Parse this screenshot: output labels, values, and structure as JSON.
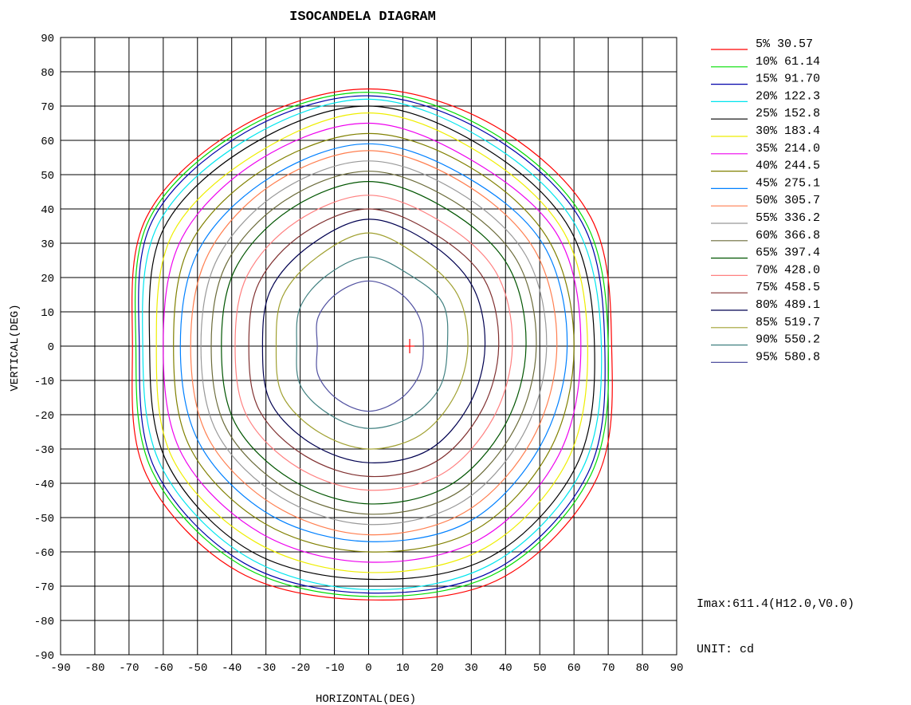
{
  "chart_data": {
    "type": "line",
    "title": "ISOCANDELA DIAGRAM",
    "xlabel": "HORIZONTAL(DEG)",
    "ylabel": "VERTICAL(DEG)",
    "xlim": [
      -90,
      90
    ],
    "ylim": [
      -90,
      90
    ],
    "xticks": [
      "-90",
      "-80",
      "-70",
      "-60",
      "-50",
      "-40",
      "-30",
      "-20",
      "-10",
      "0",
      "10",
      "20",
      "30",
      "40",
      "50",
      "60",
      "70",
      "80",
      "90"
    ],
    "yticks": [
      "90",
      "80",
      "70",
      "60",
      "50",
      "40",
      "30",
      "20",
      "10",
      "0",
      "-10",
      "-20",
      "-30",
      "-40",
      "-50",
      "-60",
      "-70",
      "-80",
      "-90"
    ],
    "grid": true,
    "legend_position": "right",
    "unit_text": "UNIT: cd",
    "imax_text": "Imax:611.4(H12.0,V0.0)",
    "max_point": {
      "x": 12,
      "y": 0,
      "color": "#ff0000"
    },
    "angles": [
      0,
      30,
      60,
      90,
      120,
      150,
      180,
      210,
      240,
      270,
      300,
      330
    ],
    "center": [
      0,
      0
    ],
    "series": [
      {
        "label": "5% 30.57",
        "color": "#ff0000",
        "radii": [
          71,
          75,
          74,
          75,
          74,
          75,
          69,
          75,
          76,
          74,
          78,
          77
        ]
      },
      {
        "label": "10% 61.14",
        "color": "#00dd00",
        "radii": [
          70,
          73,
          72,
          74,
          73,
          74,
          68,
          73,
          74,
          73,
          76,
          75
        ]
      },
      {
        "label": "15% 91.70",
        "color": "#0000aa",
        "radii": [
          69,
          72,
          71,
          73,
          72,
          73,
          67,
          72,
          73,
          72,
          75,
          74
        ]
      },
      {
        "label": "20% 122.3",
        "color": "#00e5ee",
        "radii": [
          68,
          70,
          69,
          72,
          70,
          71,
          66,
          70,
          71,
          71,
          73,
          72
        ]
      },
      {
        "label": "25% 152.8",
        "color": "#000000",
        "radii": [
          66,
          68,
          67,
          70,
          68,
          69,
          64,
          68,
          69,
          68,
          71,
          70
        ]
      },
      {
        "label": "30% 183.4",
        "color": "#eeee00",
        "radii": [
          64,
          66,
          65,
          68,
          65,
          66,
          62,
          66,
          66,
          66,
          68,
          67
        ]
      },
      {
        "label": "35% 214.0",
        "color": "#ee00ee",
        "radii": [
          62,
          64,
          62,
          65,
          63,
          63,
          60,
          63,
          63,
          63,
          65,
          64
        ]
      },
      {
        "label": "40% 244.5",
        "color": "#808000",
        "radii": [
          60,
          61,
          60,
          62,
          60,
          60,
          57,
          60,
          60,
          60,
          62,
          61
        ]
      },
      {
        "label": "45% 275.1",
        "color": "#0080ff",
        "radii": [
          58,
          59,
          57,
          59,
          57,
          57,
          55,
          57,
          57,
          57,
          59,
          58
        ]
      },
      {
        "label": "50% 305.7",
        "color": "#ff7f50",
        "radii": [
          55,
          56,
          55,
          57,
          55,
          54,
          52,
          54,
          54,
          55,
          56,
          55
        ]
      },
      {
        "label": "55% 336.2",
        "color": "#999999",
        "radii": [
          52,
          53,
          52,
          54,
          52,
          51,
          49,
          51,
          51,
          52,
          53,
          52
        ]
      },
      {
        "label": "60% 366.8",
        "color": "#6b6b3a",
        "radii": [
          49,
          50,
          49,
          51,
          49,
          48,
          46,
          48,
          48,
          49,
          50,
          49
        ]
      },
      {
        "label": "65% 397.4",
        "color": "#005500",
        "radii": [
          46,
          47,
          46,
          48,
          46,
          45,
          43,
          45,
          45,
          46,
          47,
          46
        ]
      },
      {
        "label": "70% 428.0",
        "color": "#ff8080",
        "radii": [
          42,
          43,
          42,
          44,
          42,
          41,
          39,
          41,
          41,
          42,
          43,
          42
        ]
      },
      {
        "label": "75% 458.5",
        "color": "#803030",
        "radii": [
          38,
          39,
          38,
          40,
          38,
          37,
          35,
          37,
          37,
          38,
          39,
          38
        ]
      },
      {
        "label": "80% 489.1",
        "color": "#000050",
        "radii": [
          34,
          35,
          35,
          37,
          34,
          33,
          31,
          33,
          33,
          34,
          35,
          34
        ]
      },
      {
        "label": "85% 519.7",
        "color": "#a0a030",
        "radii": [
          29,
          30,
          30,
          33,
          30,
          29,
          27,
          29,
          29,
          30,
          30,
          29
        ]
      },
      {
        "label": "90% 550.2",
        "color": "#408080",
        "radii": [
          23,
          25,
          24,
          26,
          24,
          23,
          21,
          23,
          23,
          24,
          24,
          24
        ]
      },
      {
        "label": "95% 580.8",
        "color": "#5050a0",
        "radii": [
          16,
          17,
          18,
          19,
          18,
          17,
          15,
          17,
          18,
          19,
          18,
          17
        ]
      }
    ]
  }
}
